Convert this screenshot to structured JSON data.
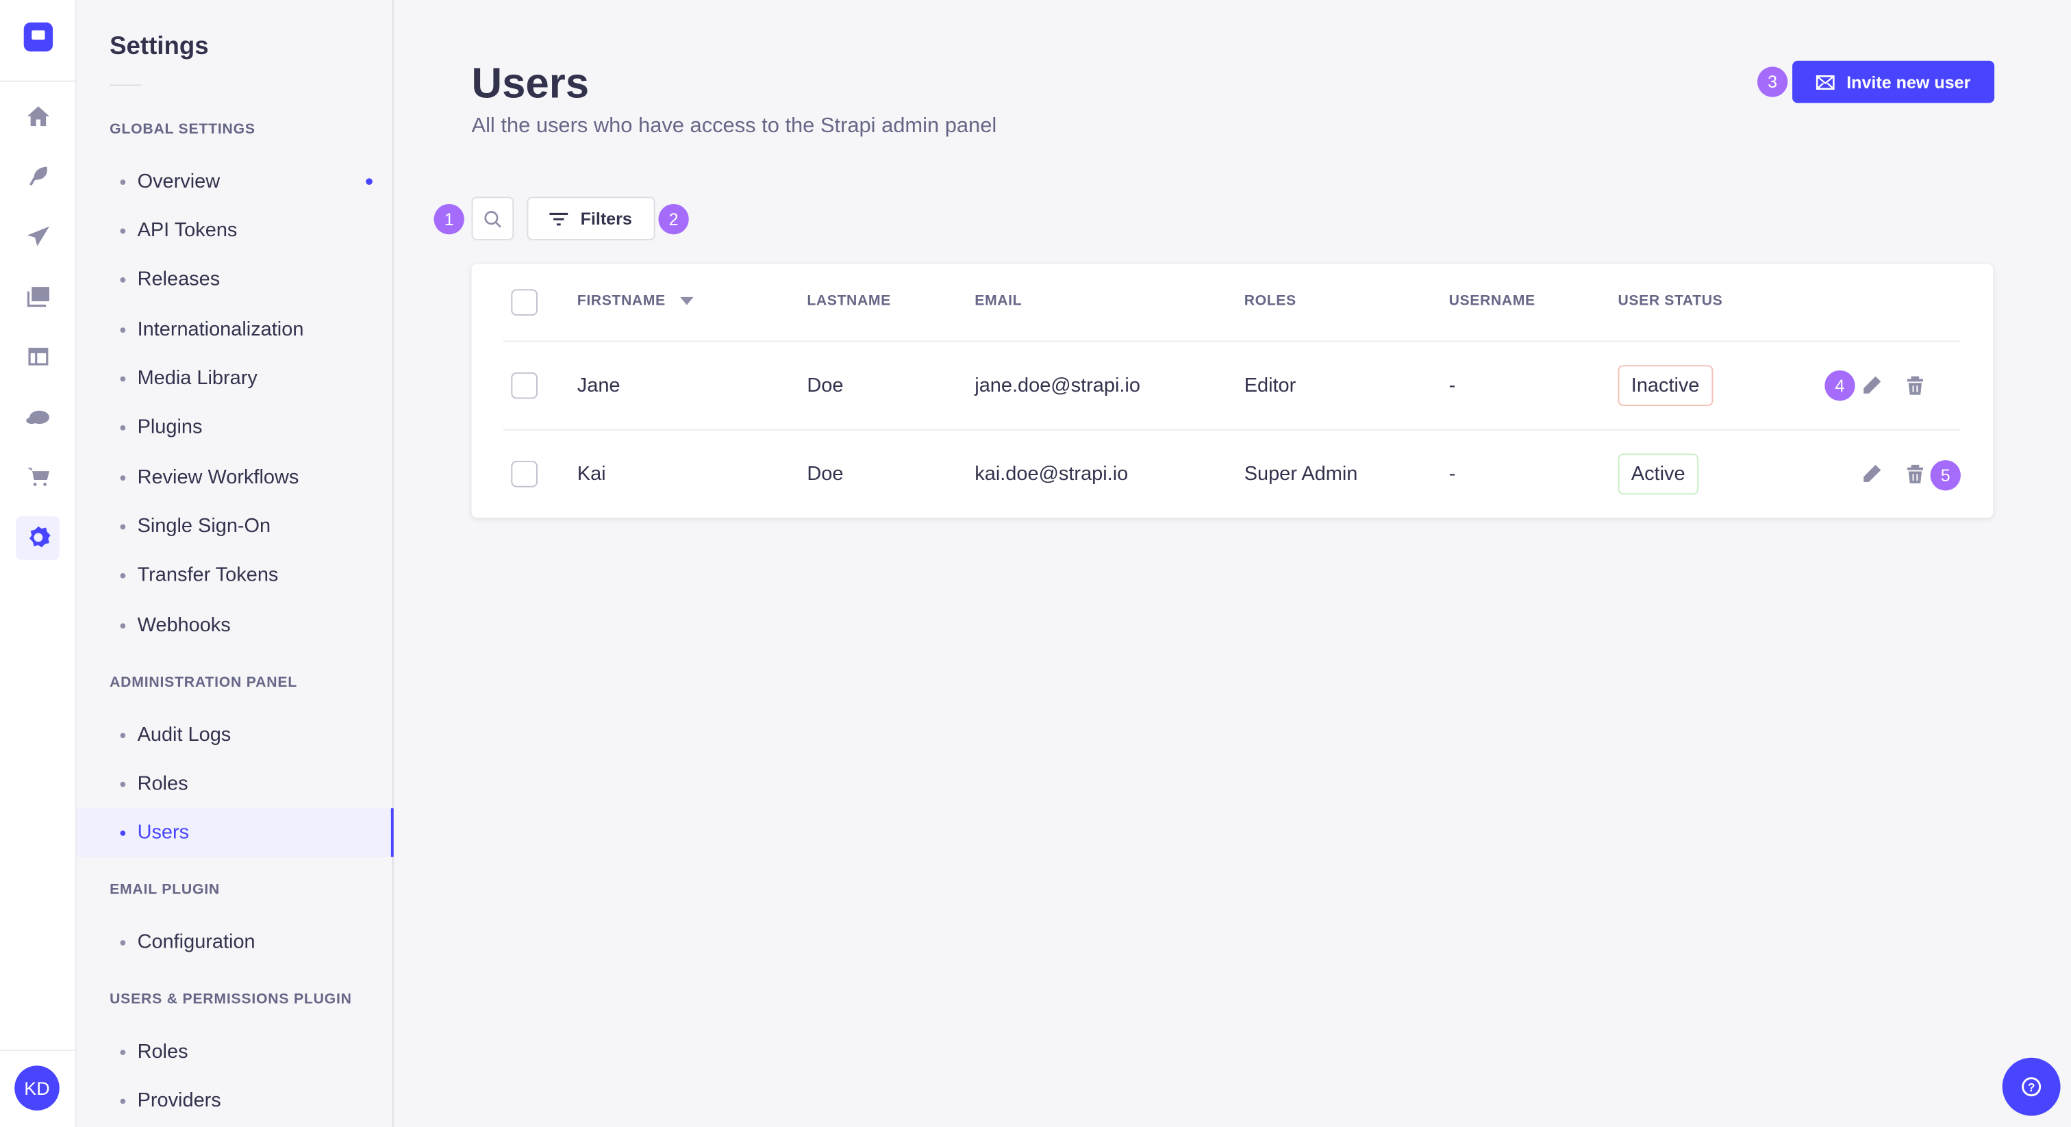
{
  "rail": {
    "icons": [
      "strapi-logo-icon",
      "home-icon",
      "content-manager-feather-icon",
      "releases-paper-plane-icon",
      "media-library-icon",
      "content-type-builder-layout-icon",
      "cloud-icon",
      "marketplace-cart-icon",
      "settings-gear-icon"
    ],
    "avatar_initials": "KD"
  },
  "subnav": {
    "title": "Settings",
    "sections": [
      {
        "label": "GLOBAL SETTINGS",
        "items": [
          "Overview",
          "API Tokens",
          "Releases",
          "Internationalization",
          "Media Library",
          "Plugins",
          "Review Workflows",
          "Single Sign-On",
          "Transfer Tokens",
          "Webhooks"
        ]
      },
      {
        "label": "ADMINISTRATION PANEL",
        "items": [
          "Audit Logs",
          "Roles",
          "Users"
        ]
      },
      {
        "label": "EMAIL PLUGIN",
        "items": [
          "Configuration"
        ]
      },
      {
        "label": "USERS & PERMISSIONS PLUGIN",
        "items": [
          "Roles",
          "Providers"
        ]
      }
    ],
    "active_item": "Users"
  },
  "header": {
    "title": "Users",
    "subtitle": "All the users who have access to the Strapi admin panel",
    "invite_label": "Invite new user"
  },
  "toolbar": {
    "filters_label": "Filters"
  },
  "table": {
    "columns": [
      "FIRSTNAME",
      "LASTNAME",
      "EMAIL",
      "ROLES",
      "USERNAME",
      "USER STATUS"
    ],
    "sort_column": "FIRSTNAME",
    "rows": [
      {
        "firstname": "Jane",
        "lastname": "Doe",
        "email": "jane.doe@strapi.io",
        "roles": "Editor",
        "username": "-",
        "status": "Inactive"
      },
      {
        "firstname": "Kai",
        "lastname": "Doe",
        "email": "kai.doe@strapi.io",
        "roles": "Super Admin",
        "username": "-",
        "status": "Active"
      }
    ]
  },
  "annotations": [
    "1",
    "2",
    "3",
    "4",
    "5"
  ],
  "colors": {
    "primary": "#4945ff",
    "annotation": "#a56bfa",
    "inactive_border": "#f5c0b8",
    "active_border": "#c6f0c2"
  }
}
